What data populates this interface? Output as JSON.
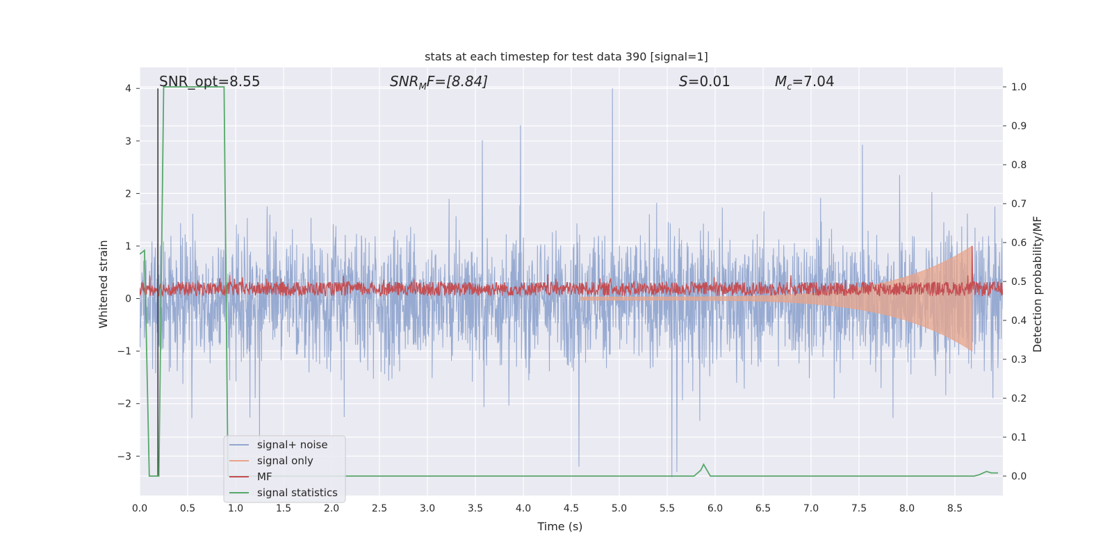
{
  "chart_data": {
    "type": "line",
    "title": "stats at each timestep for test data 390 [signal=1]",
    "xlabel": "Time (s)",
    "ylabel_left": "Whitened strain",
    "ylabel_right": "Detection probability/MF",
    "xlim": [
      0.0,
      9.0
    ],
    "ylim_left": [
      -3.75,
      4.4
    ],
    "ylim_right": [
      -0.05,
      1.05
    ],
    "x_ticks": [
      "0.0",
      "0.5",
      "1.0",
      "1.5",
      "2.0",
      "2.5",
      "3.0",
      "3.5",
      "4.0",
      "4.5",
      "5.0",
      "5.5",
      "6.0",
      "6.5",
      "7.0",
      "7.5",
      "8.0",
      "8.5"
    ],
    "y_left_ticks": [
      "−3",
      "−2",
      "−1",
      "0",
      "1",
      "2",
      "3",
      "4"
    ],
    "y_right_ticks": [
      "0.0",
      "0.1",
      "0.2",
      "0.3",
      "0.4",
      "0.5",
      "0.6",
      "0.7",
      "0.8",
      "0.9",
      "1.0"
    ],
    "grid": true,
    "annotations": [
      {
        "text": "SNR_opt=8.55",
        "x": 0.19
      },
      {
        "text": "SNRₘF=[8.84]",
        "x": 2.6,
        "italic_part": "SNR_MF"
      },
      {
        "text": "S=0.01",
        "x": 5.6
      },
      {
        "text": "M_c=7.04",
        "x": 6.6
      }
    ],
    "annotation_texts": {
      "snr_opt": "SNR_opt=8.55",
      "snr_mf_prefix": "SNR",
      "snr_mf_sub": "M",
      "snr_mf_suffix": "F=[8.84]",
      "s_prefix": "S",
      "s_suffix": "=0.01",
      "mc_prefix": "M",
      "mc_sub": "c",
      "mc_suffix": "=7.04"
    },
    "legend": {
      "placement": "lower-left",
      "entries": [
        "signal+ noise",
        "signal only",
        "MF",
        "signal statistics"
      ]
    },
    "colors": {
      "signal_noise": "#92a6cf",
      "signal_only": "#e8a48a",
      "mf": "#c44e52",
      "signal_statistics": "#55a868",
      "marker_line": "#333333",
      "plot_bg": "#eaeaf2",
      "grid": "#ffffff"
    },
    "series": [
      {
        "name": "signal statistics",
        "axis": "right",
        "x": [
          0.0,
          0.05,
          0.1,
          0.12,
          0.2,
          0.25,
          0.3,
          0.88,
          0.92,
          1.0,
          5.78,
          5.85,
          5.88,
          5.95,
          8.7,
          8.75,
          8.83,
          8.88,
          8.95
        ],
        "y": [
          0.57,
          0.58,
          0.0,
          0.0,
          0.0,
          1.0,
          1.0,
          1.0,
          0.0,
          0.0,
          0.0,
          0.015,
          0.03,
          0.0,
          0.0,
          0.003,
          0.012,
          0.008,
          0.008
        ]
      },
      {
        "name": "MF",
        "axis": "left",
        "description_value": "noise band 0.0–0.35 with spike to 1.0 at 8.68 s",
        "baseline_range": [
          0.05,
          0.32
        ],
        "peak": {
          "x": 8.68,
          "y": 1.0
        }
      },
      {
        "name": "signal only",
        "axis": "left",
        "description_value": "chirp growing from 0 to ±1.0 ending at 8.68 s",
        "peak": {
          "x": 8.68,
          "y": 1.0
        }
      },
      {
        "name": "signal+ noise",
        "axis": "left",
        "typical_range": [
          -1.6,
          1.6
        ],
        "extremes": [
          {
            "x": 4.93,
            "y": 4.0
          },
          {
            "x": 3.97,
            "y": 3.3
          },
          {
            "x": 5.55,
            "y": -3.4
          },
          {
            "x": 5.6,
            "y": -3.3
          },
          {
            "x": 4.58,
            "y": -3.2
          }
        ]
      }
    ],
    "vertical_marker_x": 0.19
  }
}
